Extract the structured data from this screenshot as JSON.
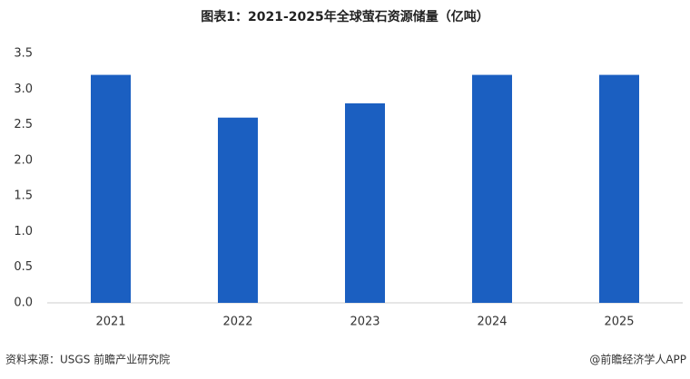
{
  "chart_data": {
    "type": "bar",
    "title": "图表1：2021-2025年全球萤石资源储量（亿吨）",
    "categories": [
      "2021",
      "2022",
      "2023",
      "2024",
      "2025"
    ],
    "values": [
      3.2,
      2.6,
      2.8,
      3.2,
      3.2
    ],
    "color": "#1b5fc1",
    "ylim": [
      0,
      3.5
    ],
    "yticks": [
      {
        "value": 0,
        "label": "0.0"
      },
      0.5,
      {
        "value": 1,
        "label": "1.0"
      },
      1.5,
      {
        "value": 2,
        "label": "2.0"
      },
      2.5,
      {
        "value": 3,
        "label": "3.0"
      },
      3.5
    ],
    "grid": false,
    "source": "资料来源：USGS  前瞻产业研究院",
    "credit": "@前瞻经济学人APP"
  }
}
